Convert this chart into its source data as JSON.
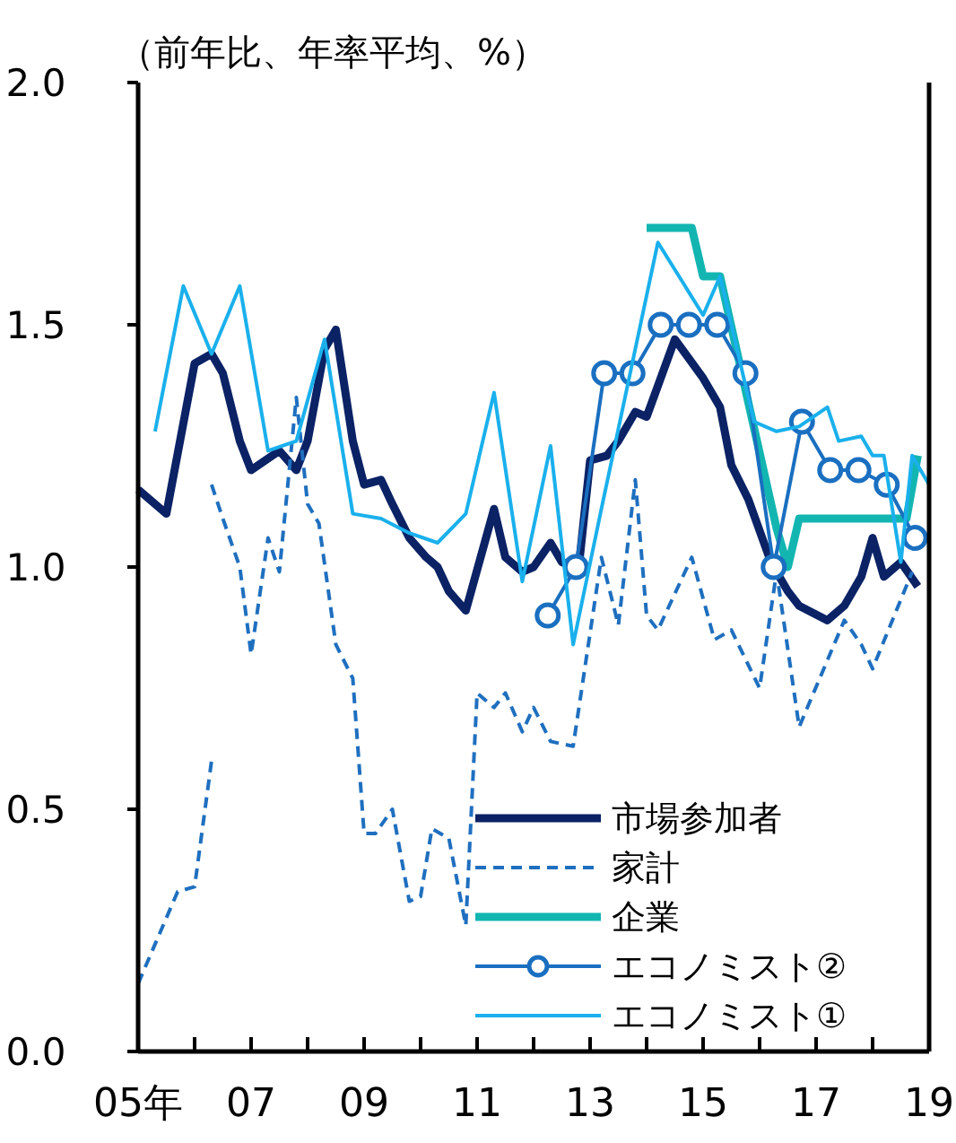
{
  "chart_data": {
    "type": "line",
    "ylabel": "（前年比、年率平均、%）",
    "xlim": [
      5,
      19
    ],
    "xticks": [
      {
        "value": 5,
        "label": "05年"
      },
      {
        "value": 6,
        "label": null
      },
      {
        "value": 7,
        "label": "07"
      },
      {
        "value": 8,
        "label": null
      },
      {
        "value": 9,
        "label": "09"
      },
      {
        "value": 10,
        "label": null
      },
      {
        "value": 11,
        "label": "11"
      },
      {
        "value": 12,
        "label": null
      },
      {
        "value": 13,
        "label": "13"
      },
      {
        "value": 14,
        "label": null
      },
      {
        "value": 15,
        "label": "15"
      },
      {
        "value": 16,
        "label": null
      },
      {
        "value": 17,
        "label": "17"
      },
      {
        "value": 18,
        "label": null
      },
      {
        "value": 19,
        "label": "19"
      }
    ],
    "ylim": [
      0,
      2
    ],
    "yticks": [
      {
        "value": 0,
        "label": "0.0"
      },
      {
        "value": 0.5,
        "label": "0.5"
      },
      {
        "value": 1,
        "label": "1.0"
      },
      {
        "value": 1.5,
        "label": "1.5"
      },
      {
        "value": 2,
        "label": "2.0"
      }
    ],
    "grid": false,
    "legend": "bottom right",
    "series": [
      {
        "name": "市場参加者",
        "color": "#0b2265",
        "marker": "none",
        "line_style": "solid",
        "x": [
          5.0,
          5.5,
          6.0,
          6.3,
          6.5,
          6.8,
          7.0,
          7.5,
          7.8,
          8.0,
          8.3,
          8.5,
          8.8,
          9.0,
          9.3,
          9.5,
          9.8,
          10.1,
          10.3,
          10.5,
          10.8,
          11.3,
          11.5,
          11.8,
          12.0,
          12.3,
          12.5,
          12.8,
          13.0,
          13.3,
          13.5,
          13.8,
          14.0,
          14.5,
          15.0,
          15.3,
          15.5,
          15.8,
          16.2,
          16.5,
          16.7,
          17.2,
          17.5,
          17.8,
          18.0,
          18.2,
          18.5,
          18.8
        ],
        "values": [
          1.16,
          1.11,
          1.42,
          1.44,
          1.4,
          1.26,
          1.2,
          1.24,
          1.2,
          1.26,
          1.45,
          1.49,
          1.26,
          1.17,
          1.18,
          1.13,
          1.06,
          1.02,
          1.0,
          0.95,
          0.91,
          1.12,
          1.02,
          0.99,
          1.0,
          1.05,
          1.01,
          1.0,
          1.22,
          1.23,
          1.26,
          1.32,
          1.31,
          1.47,
          1.39,
          1.33,
          1.21,
          1.14,
          1.01,
          0.95,
          0.92,
          0.89,
          0.92,
          0.98,
          1.06,
          0.98,
          1.01,
          0.96
        ]
      },
      {
        "name": "家計",
        "color": "#1f6fbf",
        "marker": "none",
        "line_style": "dashed",
        "x": [
          6.3,
          6.5,
          6.8,
          7.0,
          7.3,
          7.5,
          7.8,
          8.0,
          8.2,
          8.5,
          8.8,
          9.0,
          9.2,
          9.5,
          9.8,
          10.0,
          10.2,
          10.5,
          10.8,
          11.0,
          11.3,
          11.5,
          11.8,
          12.0,
          12.3,
          12.7,
          13.2,
          13.5,
          13.8,
          14.0,
          14.2,
          14.8,
          15.2,
          15.5,
          16.0,
          16.3,
          16.7,
          17.5,
          17.8,
          18.0,
          18.7
        ],
        "values": [
          1.17,
          1.1,
          1.0,
          0.82,
          1.06,
          0.99,
          1.35,
          1.13,
          1.09,
          0.84,
          0.77,
          0.45,
          0.45,
          0.5,
          0.31,
          0.32,
          0.46,
          0.44,
          0.26,
          0.74,
          0.71,
          0.74,
          0.66,
          0.71,
          0.64,
          0.63,
          1.02,
          0.88,
          1.18,
          0.9,
          0.87,
          1.02,
          0.85,
          0.87,
          0.75,
          0.99,
          0.67,
          0.89,
          0.84,
          0.79,
          0.99
        ]
      },
      {
        "color": "#1f6fbf",
        "marker": "none",
        "line_style": "dashed",
        "x": [
          5.0,
          5.7,
          6.0,
          6.3
        ],
        "values": [
          0.14,
          0.33,
          0.34,
          0.6
        ]
      },
      {
        "name": "企業",
        "color": "#13b5b1",
        "marker": "none",
        "line_style": "solid",
        "x": [
          14.0,
          14.8,
          15.0,
          15.3,
          16.3,
          16.5,
          16.7,
          18.6,
          18.8
        ],
        "values": [
          1.7,
          1.7,
          1.6,
          1.6,
          1.08,
          1.0,
          1.1,
          1.1,
          1.23
        ]
      },
      {
        "name": "エコノミスト②",
        "color": "#1a6fc0",
        "marker": "circle",
        "line_style": "solid",
        "x": [
          12.25,
          12.75,
          13.25,
          13.75,
          14.25,
          14.75,
          15.25,
          15.75,
          16.25,
          16.75,
          17.25,
          17.75,
          18.25,
          18.75
        ],
        "values": [
          0.9,
          1.0,
          1.4,
          1.4,
          1.5,
          1.5,
          1.5,
          1.4,
          1.0,
          1.3,
          1.2,
          1.2,
          1.17,
          1.06
        ]
      },
      {
        "name": "エコノミスト①",
        "color": "#1ab0ec",
        "marker": "none",
        "line_style": "solid",
        "x": [
          5.3,
          5.8,
          6.3,
          6.8,
          7.3,
          7.8,
          8.3,
          8.8,
          9.3,
          9.8,
          10.3,
          10.8,
          11.3,
          11.8,
          12.3,
          12.7,
          13.2,
          14.2,
          15.0,
          15.3,
          15.9,
          16.3,
          16.7,
          17.2,
          17.4,
          17.8,
          18.0,
          18.2,
          18.5,
          18.7,
          19.0
        ],
        "values": [
          1.28,
          1.58,
          1.44,
          1.58,
          1.24,
          1.26,
          1.47,
          1.11,
          1.1,
          1.07,
          1.05,
          1.11,
          1.36,
          0.97,
          1.25,
          0.84,
          1.12,
          1.67,
          1.52,
          1.6,
          1.3,
          1.28,
          1.29,
          1.33,
          1.26,
          1.27,
          1.23,
          1.23,
          1.01,
          1.23,
          1.17
        ]
      }
    ]
  }
}
